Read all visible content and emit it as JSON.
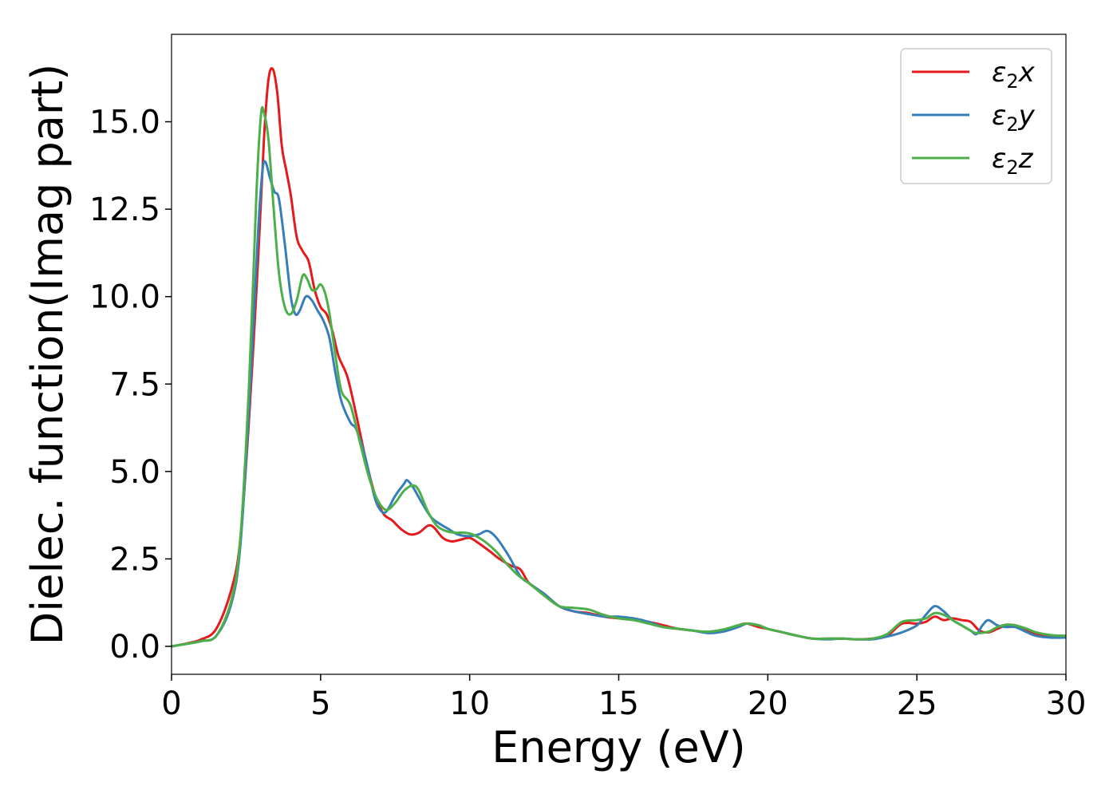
{
  "chart_data": {
    "type": "line",
    "title": "",
    "xlabel": "Energy (eV)",
    "ylabel": "Dielec. function(Imag part)",
    "xlim": [
      0,
      30
    ],
    "ylim": [
      -0.8,
      17.5
    ],
    "x_ticks": [
      0,
      5,
      10,
      15,
      20,
      25,
      30
    ],
    "x_tick_labels": [
      "0",
      "5",
      "10",
      "15",
      "20",
      "25",
      "30"
    ],
    "y_ticks": [
      0.0,
      2.5,
      5.0,
      7.5,
      10.0,
      12.5,
      15.0
    ],
    "y_tick_labels": [
      "0.0",
      "2.5",
      "5.0",
      "7.5",
      "10.0",
      "12.5",
      "15.0"
    ],
    "grid": false,
    "legend_position": "top-right",
    "series": [
      {
        "name": "ε2x",
        "legend": {
          "base": "ε",
          "sub": "2",
          "var": "x"
        },
        "color": "#e41a1c",
        "points": [
          [
            0,
            0
          ],
          [
            0.5,
            0.08
          ],
          [
            1.0,
            0.2
          ],
          [
            1.5,
            0.5
          ],
          [
            2.0,
            1.6
          ],
          [
            2.3,
            3.0
          ],
          [
            2.6,
            6.5
          ],
          [
            2.9,
            11.0
          ],
          [
            3.1,
            14.5
          ],
          [
            3.25,
            16.2
          ],
          [
            3.4,
            16.5
          ],
          [
            3.55,
            15.8
          ],
          [
            3.7,
            14.3
          ],
          [
            3.85,
            13.6
          ],
          [
            4.0,
            12.9
          ],
          [
            4.2,
            11.7
          ],
          [
            4.4,
            11.3
          ],
          [
            4.6,
            11.0
          ],
          [
            4.8,
            10.2
          ],
          [
            5.0,
            9.7
          ],
          [
            5.2,
            9.5
          ],
          [
            5.4,
            9.0
          ],
          [
            5.6,
            8.3
          ],
          [
            5.9,
            7.7
          ],
          [
            6.2,
            6.6
          ],
          [
            6.5,
            5.4
          ],
          [
            6.8,
            4.4
          ],
          [
            7.1,
            3.8
          ],
          [
            7.4,
            3.6
          ],
          [
            7.7,
            3.35
          ],
          [
            8.0,
            3.2
          ],
          [
            8.3,
            3.25
          ],
          [
            8.6,
            3.45
          ],
          [
            8.8,
            3.4
          ],
          [
            9.1,
            3.1
          ],
          [
            9.4,
            3.0
          ],
          [
            9.7,
            3.05
          ],
          [
            10.0,
            3.1
          ],
          [
            10.3,
            2.95
          ],
          [
            10.7,
            2.7
          ],
          [
            11.0,
            2.5
          ],
          [
            11.4,
            2.3
          ],
          [
            11.7,
            2.2
          ],
          [
            12.0,
            1.8
          ],
          [
            12.5,
            1.5
          ],
          [
            13.0,
            1.15
          ],
          [
            13.5,
            1.0
          ],
          [
            14.0,
            0.95
          ],
          [
            14.5,
            0.85
          ],
          [
            15.0,
            0.8
          ],
          [
            15.5,
            0.75
          ],
          [
            16.0,
            0.7
          ],
          [
            16.5,
            0.6
          ],
          [
            17.0,
            0.5
          ],
          [
            17.5,
            0.45
          ],
          [
            18.0,
            0.4
          ],
          [
            18.5,
            0.45
          ],
          [
            19.0,
            0.6
          ],
          [
            19.3,
            0.65
          ],
          [
            19.7,
            0.55
          ],
          [
            20.0,
            0.5
          ],
          [
            20.5,
            0.4
          ],
          [
            21.0,
            0.3
          ],
          [
            21.5,
            0.22
          ],
          [
            22.0,
            0.22
          ],
          [
            22.5,
            0.22
          ],
          [
            23.0,
            0.2
          ],
          [
            23.5,
            0.22
          ],
          [
            24.0,
            0.3
          ],
          [
            24.5,
            0.65
          ],
          [
            25.0,
            0.65
          ],
          [
            25.3,
            0.7
          ],
          [
            25.6,
            0.85
          ],
          [
            25.9,
            0.75
          ],
          [
            26.2,
            0.8
          ],
          [
            26.5,
            0.75
          ],
          [
            26.8,
            0.7
          ],
          [
            27.1,
            0.45
          ],
          [
            27.4,
            0.4
          ],
          [
            27.7,
            0.5
          ],
          [
            28.0,
            0.6
          ],
          [
            28.3,
            0.6
          ],
          [
            28.7,
            0.45
          ],
          [
            29.0,
            0.35
          ],
          [
            29.5,
            0.3
          ],
          [
            30.0,
            0.3
          ]
        ]
      },
      {
        "name": "ε2y",
        "legend": {
          "base": "ε",
          "sub": "2",
          "var": "y"
        },
        "color": "#377eb8",
        "points": [
          [
            0,
            0
          ],
          [
            0.5,
            0.07
          ],
          [
            1.0,
            0.15
          ],
          [
            1.5,
            0.3
          ],
          [
            2.0,
            1.2
          ],
          [
            2.3,
            2.8
          ],
          [
            2.6,
            6.8
          ],
          [
            2.9,
            11.8
          ],
          [
            3.05,
            13.6
          ],
          [
            3.15,
            13.85
          ],
          [
            3.3,
            13.4
          ],
          [
            3.45,
            13.0
          ],
          [
            3.6,
            12.8
          ],
          [
            3.8,
            11.5
          ],
          [
            4.0,
            10.0
          ],
          [
            4.15,
            9.5
          ],
          [
            4.3,
            9.6
          ],
          [
            4.5,
            10.0
          ],
          [
            4.7,
            9.9
          ],
          [
            4.9,
            9.6
          ],
          [
            5.1,
            9.3
          ],
          [
            5.3,
            8.8
          ],
          [
            5.5,
            7.8
          ],
          [
            5.7,
            7.0
          ],
          [
            6.0,
            6.4
          ],
          [
            6.2,
            6.2
          ],
          [
            6.5,
            5.4
          ],
          [
            6.8,
            4.3
          ],
          [
            7.0,
            3.9
          ],
          [
            7.2,
            3.85
          ],
          [
            7.5,
            4.3
          ],
          [
            7.8,
            4.65
          ],
          [
            7.9,
            4.75
          ],
          [
            8.1,
            4.55
          ],
          [
            8.4,
            4.1
          ],
          [
            8.7,
            3.7
          ],
          [
            9.0,
            3.5
          ],
          [
            9.3,
            3.35
          ],
          [
            9.6,
            3.2
          ],
          [
            10.0,
            3.15
          ],
          [
            10.3,
            3.2
          ],
          [
            10.6,
            3.3
          ],
          [
            10.9,
            3.1
          ],
          [
            11.3,
            2.6
          ],
          [
            11.7,
            2.0
          ],
          [
            12.0,
            1.8
          ],
          [
            12.5,
            1.5
          ],
          [
            13.0,
            1.15
          ],
          [
            13.5,
            1.0
          ],
          [
            14.0,
            0.92
          ],
          [
            14.5,
            0.85
          ],
          [
            15.0,
            0.85
          ],
          [
            15.5,
            0.8
          ],
          [
            16.0,
            0.7
          ],
          [
            16.5,
            0.55
          ],
          [
            17.0,
            0.5
          ],
          [
            17.5,
            0.45
          ],
          [
            18.0,
            0.38
          ],
          [
            18.5,
            0.42
          ],
          [
            19.0,
            0.55
          ],
          [
            19.3,
            0.65
          ],
          [
            19.7,
            0.6
          ],
          [
            20.0,
            0.5
          ],
          [
            20.5,
            0.4
          ],
          [
            21.0,
            0.3
          ],
          [
            21.5,
            0.22
          ],
          [
            22.0,
            0.2
          ],
          [
            22.5,
            0.22
          ],
          [
            23.0,
            0.2
          ],
          [
            23.5,
            0.2
          ],
          [
            24.0,
            0.28
          ],
          [
            24.5,
            0.4
          ],
          [
            25.0,
            0.6
          ],
          [
            25.3,
            0.9
          ],
          [
            25.6,
            1.15
          ],
          [
            25.9,
            1.0
          ],
          [
            26.2,
            0.75
          ],
          [
            26.5,
            0.6
          ],
          [
            26.8,
            0.45
          ],
          [
            27.0,
            0.35
          ],
          [
            27.2,
            0.6
          ],
          [
            27.4,
            0.75
          ],
          [
            27.7,
            0.6
          ],
          [
            28.0,
            0.55
          ],
          [
            28.3,
            0.55
          ],
          [
            28.7,
            0.4
          ],
          [
            29.0,
            0.3
          ],
          [
            29.5,
            0.25
          ],
          [
            30.0,
            0.25
          ]
        ]
      },
      {
        "name": "ε2z",
        "legend": {
          "base": "ε",
          "sub": "2",
          "var": "z"
        },
        "color": "#4daf4a",
        "points": [
          [
            0,
            0
          ],
          [
            0.5,
            0.07
          ],
          [
            1.0,
            0.15
          ],
          [
            1.5,
            0.3
          ],
          [
            2.0,
            1.3
          ],
          [
            2.3,
            3.0
          ],
          [
            2.6,
            7.5
          ],
          [
            2.85,
            13.0
          ],
          [
            3.0,
            15.2
          ],
          [
            3.1,
            15.25
          ],
          [
            3.25,
            14.5
          ],
          [
            3.4,
            12.8
          ],
          [
            3.6,
            10.7
          ],
          [
            3.8,
            9.7
          ],
          [
            4.0,
            9.5
          ],
          [
            4.2,
            9.9
          ],
          [
            4.4,
            10.6
          ],
          [
            4.55,
            10.5
          ],
          [
            4.7,
            10.2
          ],
          [
            4.85,
            10.2
          ],
          [
            5.0,
            10.35
          ],
          [
            5.15,
            10.1
          ],
          [
            5.3,
            9.5
          ],
          [
            5.5,
            8.3
          ],
          [
            5.7,
            7.3
          ],
          [
            6.0,
            6.9
          ],
          [
            6.3,
            5.9
          ],
          [
            6.6,
            4.9
          ],
          [
            6.9,
            4.2
          ],
          [
            7.2,
            3.9
          ],
          [
            7.5,
            4.1
          ],
          [
            7.8,
            4.45
          ],
          [
            8.1,
            4.6
          ],
          [
            8.3,
            4.45
          ],
          [
            8.6,
            3.85
          ],
          [
            8.9,
            3.45
          ],
          [
            9.2,
            3.3
          ],
          [
            9.5,
            3.25
          ],
          [
            9.8,
            3.25
          ],
          [
            10.1,
            3.2
          ],
          [
            10.5,
            3.0
          ],
          [
            10.9,
            2.7
          ],
          [
            11.2,
            2.4
          ],
          [
            11.6,
            2.05
          ],
          [
            12.0,
            1.8
          ],
          [
            12.5,
            1.45
          ],
          [
            13.0,
            1.15
          ],
          [
            13.5,
            1.1
          ],
          [
            14.0,
            1.05
          ],
          [
            14.5,
            0.9
          ],
          [
            15.0,
            0.8
          ],
          [
            15.5,
            0.75
          ],
          [
            16.0,
            0.65
          ],
          [
            16.5,
            0.55
          ],
          [
            17.0,
            0.5
          ],
          [
            17.5,
            0.45
          ],
          [
            18.0,
            0.42
          ],
          [
            18.5,
            0.48
          ],
          [
            19.0,
            0.6
          ],
          [
            19.3,
            0.65
          ],
          [
            19.7,
            0.6
          ],
          [
            20.0,
            0.5
          ],
          [
            20.5,
            0.4
          ],
          [
            21.0,
            0.3
          ],
          [
            21.5,
            0.22
          ],
          [
            22.0,
            0.22
          ],
          [
            22.5,
            0.22
          ],
          [
            23.0,
            0.2
          ],
          [
            23.5,
            0.22
          ],
          [
            24.0,
            0.35
          ],
          [
            24.5,
            0.7
          ],
          [
            25.0,
            0.75
          ],
          [
            25.3,
            0.8
          ],
          [
            25.6,
            0.95
          ],
          [
            25.9,
            0.9
          ],
          [
            26.2,
            0.75
          ],
          [
            26.5,
            0.6
          ],
          [
            26.8,
            0.45
          ],
          [
            27.0,
            0.38
          ],
          [
            27.4,
            0.42
          ],
          [
            27.7,
            0.55
          ],
          [
            28.0,
            0.62
          ],
          [
            28.3,
            0.6
          ],
          [
            28.7,
            0.5
          ],
          [
            29.0,
            0.4
          ],
          [
            29.5,
            0.32
          ],
          [
            30.0,
            0.3
          ]
        ]
      }
    ]
  }
}
